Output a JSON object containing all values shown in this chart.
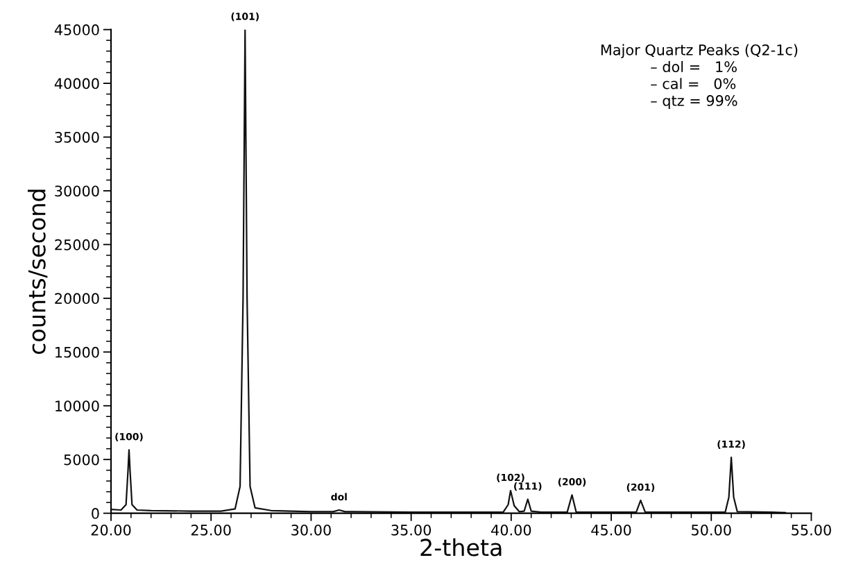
{
  "chart_data": {
    "type": "line",
    "xlabel": "2-theta",
    "ylabel": "counts/second",
    "legend_title": "Major Quartz Peaks (Q2-1c)",
    "series": [
      {
        "color": "#111111",
        "x": [
          20.0,
          20.5,
          20.75,
          20.85,
          20.9,
          20.95,
          21.05,
          21.3,
          22,
          24,
          25.5,
          26.2,
          26.45,
          26.6,
          26.7,
          26.8,
          26.95,
          27.2,
          28,
          30,
          31.1,
          31.4,
          31.7,
          35,
          39.6,
          39.85,
          39.97,
          40.15,
          40.4,
          40.65,
          40.83,
          41.0,
          41.5,
          42.8,
          43.04,
          43.25,
          46.25,
          46.47,
          46.7,
          50.7,
          50.88,
          51.0,
          51.12,
          51.3,
          53,
          53.7
        ],
        "values": [
          350,
          300,
          800,
          4000,
          5900,
          4000,
          800,
          300,
          250,
          200,
          200,
          400,
          2500,
          20000,
          45000,
          20000,
          2500,
          500,
          250,
          150,
          150,
          300,
          150,
          100,
          100,
          800,
          2100,
          700,
          150,
          200,
          1300,
          200,
          100,
          100,
          1700,
          100,
          100,
          1200,
          100,
          100,
          1500,
          5200,
          1500,
          150,
          100,
          50
        ]
      }
    ],
    "annotations": [
      {
        "text": "(100)",
        "x": 20.9,
        "y": 5900
      },
      {
        "text": "(101)",
        "x": 26.7,
        "y": 45000
      },
      {
        "text": "dol",
        "x": 31.4,
        "y": 300
      },
      {
        "text": "(102)",
        "x": 39.97,
        "y": 2100
      },
      {
        "text": "(111)",
        "x": 40.83,
        "y": 1300
      },
      {
        "text": "(200)",
        "x": 43.04,
        "y": 1700
      },
      {
        "text": "(201)",
        "x": 46.47,
        "y": 1200
      },
      {
        "text": "(112)",
        "x": 51.0,
        "y": 5200
      },
      "– dol =   1%",
      "– cal =   0%",
      "– qtz = 99%"
    ],
    "xlim": [
      20,
      55
    ],
    "ylim": [
      0,
      45000
    ],
    "xticks": [
      {
        "value": 20,
        "label": "20.00"
      },
      {
        "value": 25,
        "label": "25.00"
      },
      {
        "value": 30,
        "label": "30.00"
      },
      {
        "value": 35,
        "label": "35.00"
      },
      {
        "value": 40,
        "label": "40.00"
      },
      {
        "value": 45,
        "label": "45.00"
      },
      {
        "value": 50,
        "label": "50.00"
      },
      {
        "value": 55,
        "label": "55.00"
      }
    ],
    "yticks": [
      0,
      5000,
      10000,
      15000,
      20000,
      25000,
      30000,
      35000,
      40000,
      45000
    ],
    "grid": false,
    "marker": "none",
    "line_style": "solid"
  }
}
